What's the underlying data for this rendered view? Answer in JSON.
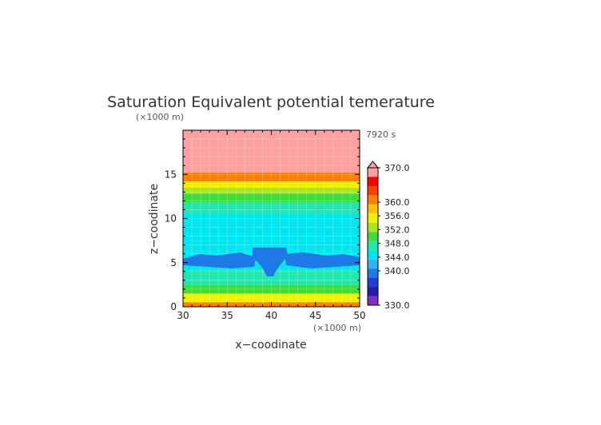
{
  "chart_data": {
    "type": "heatmap",
    "title": "Saturation Equivalent potential temerature",
    "xlabel": "x−coodinate",
    "ylabel": "z−coodinate",
    "x_unit": "(×1000 m)",
    "y_unit": "(×1000 m)",
    "time_label": "7920 s",
    "xlim": [
      30,
      50
    ],
    "ylim": [
      0,
      20
    ],
    "x_ticks": [
      "30",
      "35",
      "40",
      "45",
      "50"
    ],
    "y_ticks": [
      "0",
      "5",
      "10",
      "15"
    ],
    "colorbar": {
      "range": [
        330,
        370
      ],
      "labels": [
        "370.0",
        "360.0",
        "356.0",
        "352.0",
        "348.0",
        "344.0",
        "340.0",
        "330.0"
      ],
      "colors": [
        "#7f2fbf",
        "#2020a8",
        "#1e40d6",
        "#1e78e6",
        "#31b4f0",
        "#00e6f0",
        "#20e6b0",
        "#3cdc3c",
        "#a8e61e",
        "#f0f000",
        "#ffc000",
        "#ff8000",
        "#ff4000",
        "#ff0000",
        "#ffa0a0"
      ]
    },
    "profile": {
      "z": [
        0,
        0.5,
        1.5,
        2.5,
        3.3,
        4.2,
        5.2,
        6.3,
        7.5,
        10.5,
        11.8,
        12.8,
        13.5,
        14.2,
        15.2
      ],
      "theta_es": [
        360,
        356,
        350,
        348,
        346,
        344,
        343.6,
        344,
        345,
        346,
        349,
        352,
        356,
        360,
        372
      ]
    },
    "grid": "on"
  }
}
